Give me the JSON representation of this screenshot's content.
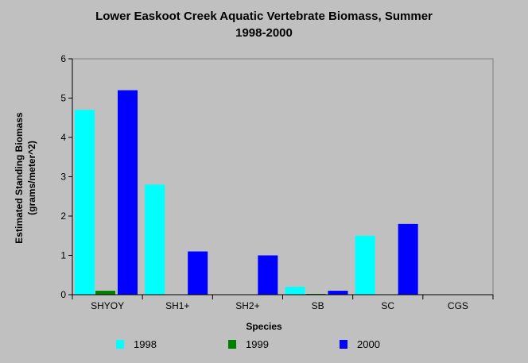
{
  "chart_data": {
    "type": "bar",
    "title": [
      "Lower Easkoot Creek Aquatic Vertebrate Biomass, Summer",
      "1998-2000"
    ],
    "xlabel": "Species",
    "ylabel": [
      "Estimated Standing Biomass",
      "(grams/meter^2)"
    ],
    "ylim": [
      0,
      6
    ],
    "yticks": [
      "0",
      "1",
      "2",
      "3",
      "4",
      "5",
      "6"
    ],
    "categories": [
      "SHYOY",
      "SH1+",
      "SH2+",
      "SB",
      "SC",
      "CGS"
    ],
    "series": [
      {
        "name": "1998",
        "color": "#00ffff",
        "values": [
          4.7,
          2.8,
          0,
          0.2,
          1.5,
          0
        ]
      },
      {
        "name": "1999",
        "color": "#008000",
        "values": [
          0.1,
          0,
          0,
          0.02,
          0,
          0
        ]
      },
      {
        "name": "2000",
        "color": "#0000ff",
        "values": [
          5.2,
          1.1,
          1.0,
          0.1,
          1.8,
          0
        ]
      }
    ],
    "grid": false,
    "legend_position": "bottom"
  }
}
